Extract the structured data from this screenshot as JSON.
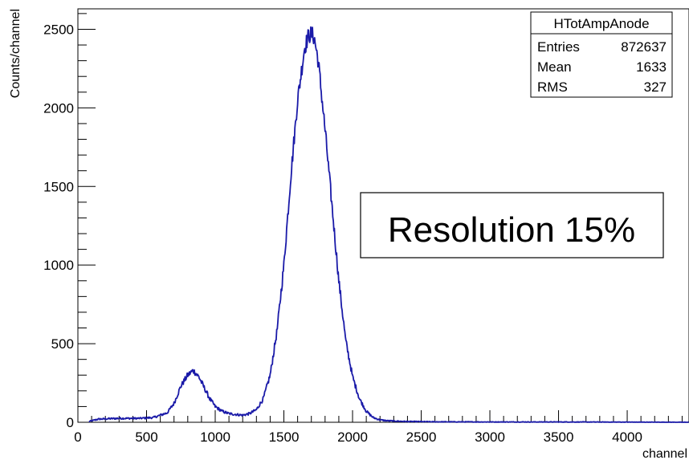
{
  "chart_data": {
    "type": "line",
    "title": "",
    "xlabel": "channel",
    "ylabel": "Counts/channel",
    "xlim": [
      0,
      4450
    ],
    "ylim": [
      0,
      2630
    ],
    "xticks": [
      0,
      500,
      1000,
      1500,
      2000,
      2500,
      3000,
      3500,
      4000
    ],
    "yticks": [
      0,
      500,
      1000,
      1500,
      2000,
      2500
    ],
    "grid": false,
    "legend": "none",
    "line_color": "#1a1aa8",
    "series": [
      {
        "x": [
          80,
          150,
          300,
          450,
          550,
          650,
          700,
          750,
          800,
          840,
          880,
          920,
          960,
          1000,
          1050,
          1100,
          1150,
          1200,
          1250,
          1300,
          1350,
          1400,
          1450,
          1500,
          1550,
          1600,
          1650,
          1680,
          1700,
          1720,
          1750,
          1800,
          1850,
          1900,
          1950,
          2000,
          2050,
          2100,
          2150,
          2200,
          2250,
          2300,
          2400,
          2600,
          3000,
          3500,
          4000,
          4450
        ],
        "y": [
          5,
          20,
          25,
          25,
          30,
          60,
          120,
          230,
          300,
          330,
          290,
          220,
          150,
          100,
          70,
          55,
          50,
          45,
          55,
          80,
          150,
          300,
          580,
          1000,
          1560,
          2050,
          2380,
          2460,
          2470,
          2450,
          2300,
          1860,
          1380,
          900,
          520,
          290,
          150,
          70,
          30,
          15,
          10,
          8,
          5,
          3,
          2,
          2,
          1,
          0
        ]
      }
    ],
    "stats_box": {
      "title": "HTotAmpAnode",
      "rows": [
        {
          "label": "Entries",
          "value": "872637"
        },
        {
          "label": "Mean",
          "value": "1633"
        },
        {
          "label": "RMS",
          "value": "327"
        }
      ]
    },
    "annotation": "Resolution 15%"
  }
}
